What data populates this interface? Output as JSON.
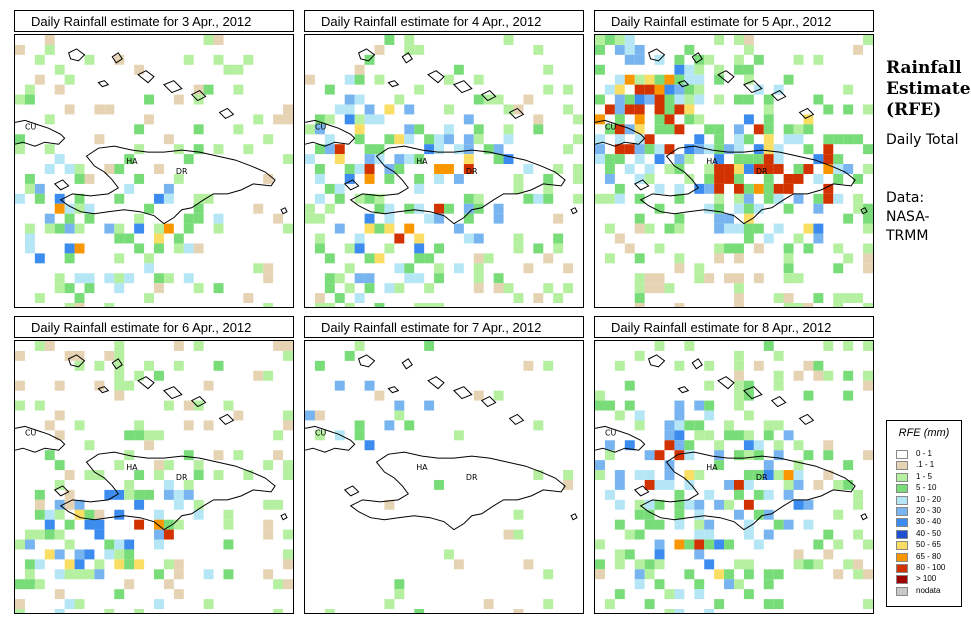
{
  "panels": [
    {
      "title": "Daily Rainfall estimate for  3 Apr., 2012",
      "pattern": "light"
    },
    {
      "title": "Daily Rainfall estimate for  4 Apr., 2012",
      "pattern": "moderate"
    },
    {
      "title": "Daily Rainfall estimate for  5 Apr., 2012",
      "pattern": "heavy"
    },
    {
      "title": "Daily Rainfall estimate for  6 Apr., 2012",
      "pattern": "light"
    },
    {
      "title": "Daily Rainfall estimate for  7 Apr., 2012",
      "pattern": "minimal"
    },
    {
      "title": "Daily Rainfall estimate for  8 Apr., 2012",
      "pattern": "moderate"
    }
  ],
  "map_labels": {
    "cuba": "CU",
    "haiti": "HA",
    "dominican_republic": "DR"
  },
  "side": {
    "title": "Rainfall Estimate (RFE)",
    "daily_total": "Daily Total",
    "data_source": "Data: NASA-TRMM"
  },
  "legend": {
    "title": "RFE (mm)",
    "items": [
      {
        "label": "0 - 1",
        "color": "#ffffff"
      },
      {
        "label": ".1 - 1",
        "color": "#e6d3b4"
      },
      {
        "label": "1 - 5",
        "color": "#b4f0a0"
      },
      {
        "label": "5 - 10",
        "color": "#78dc78"
      },
      {
        "label": "10 - 20",
        "color": "#b4e6f5"
      },
      {
        "label": "20 - 30",
        "color": "#78b4f0"
      },
      {
        "label": "30 - 40",
        "color": "#3c8cf0"
      },
      {
        "label": "40 - 50",
        "color": "#1e50d2"
      },
      {
        "label": "50 - 65",
        "color": "#fade64"
      },
      {
        "label": "65 - 80",
        "color": "#fa9600"
      },
      {
        "label": "80 - 100",
        "color": "#d23200"
      },
      {
        "label": "> 100",
        "color": "#a00000"
      },
      {
        "label": "nodata",
        "color": "#c8c8c8"
      }
    ]
  }
}
